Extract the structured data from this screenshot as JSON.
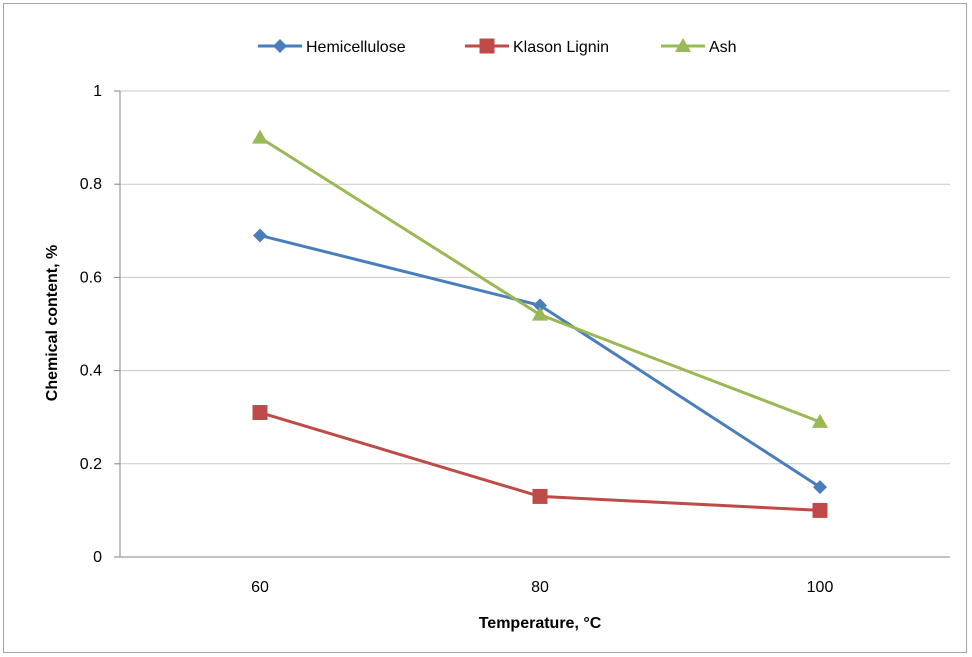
{
  "chart_data": {
    "type": "line",
    "title": "",
    "xlabel": "Temperature, °C",
    "ylabel": "Chemical content, %",
    "categories": [
      "60",
      "80",
      "100"
    ],
    "ylim": [
      0,
      1
    ],
    "yticks": [
      0,
      0.2,
      0.4,
      0.6,
      0.8,
      1
    ],
    "ytick_labels": [
      "0",
      "0.2",
      "0.4",
      "0.6",
      "0.8",
      "1"
    ],
    "grid": "horizontal",
    "legend_position": "top",
    "series": [
      {
        "name": "Hemicellulose",
        "values": [
          0.69,
          0.54,
          0.15
        ],
        "color": "#4a7ebb",
        "marker": "diamond"
      },
      {
        "name": "Klason Lignin",
        "values": [
          0.31,
          0.13,
          0.1
        ],
        "color": "#be4b48",
        "marker": "square"
      },
      {
        "name": "Ash",
        "values": [
          0.9,
          0.52,
          0.29
        ],
        "color": "#98b954",
        "marker": "triangle"
      }
    ]
  }
}
